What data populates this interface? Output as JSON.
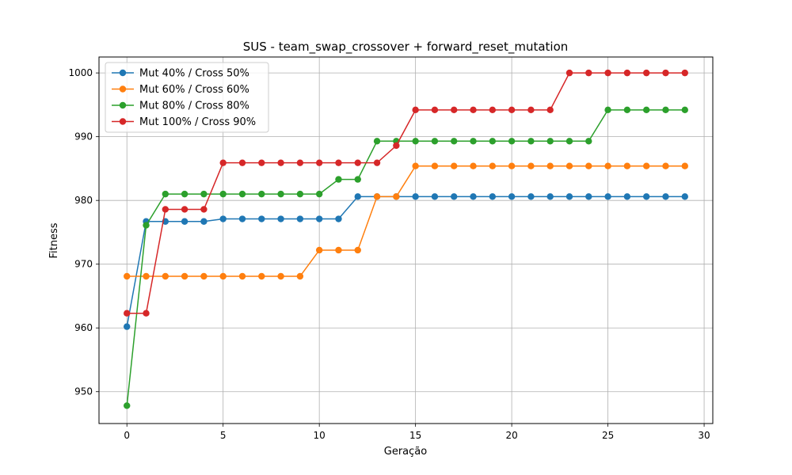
{
  "chart_data": {
    "type": "line",
    "title": "SUS - team_swap_crossover + forward_reset_mutation",
    "xlabel": "Geração",
    "ylabel": "Fitness",
    "xlim": [
      -1.45,
      30.45
    ],
    "ylim": [
      945,
      1002.5
    ],
    "xticks": [
      0,
      5,
      10,
      15,
      20,
      25,
      30
    ],
    "yticks": [
      950,
      960,
      970,
      980,
      990,
      1000
    ],
    "grid": true,
    "legend_position": "top-left",
    "x": [
      0,
      1,
      2,
      3,
      4,
      5,
      6,
      7,
      8,
      9,
      10,
      11,
      12,
      13,
      14,
      15,
      16,
      17,
      18,
      19,
      20,
      21,
      22,
      23,
      24,
      25,
      26,
      27,
      28,
      29
    ],
    "series": [
      {
        "name": "Mut 40% / Cross 50%",
        "color": "#1f77b4",
        "values": [
          960.2,
          976.7,
          976.7,
          976.7,
          976.7,
          977.1,
          977.1,
          977.1,
          977.1,
          977.1,
          977.1,
          977.1,
          980.6,
          980.6,
          980.6,
          980.6,
          980.6,
          980.6,
          980.6,
          980.6,
          980.6,
          980.6,
          980.6,
          980.6,
          980.6,
          980.6,
          980.6,
          980.6,
          980.6,
          980.6
        ]
      },
      {
        "name": "Mut 60% / Cross 60%",
        "color": "#ff7f0e",
        "values": [
          968.1,
          968.1,
          968.1,
          968.1,
          968.1,
          968.1,
          968.1,
          968.1,
          968.1,
          968.1,
          972.2,
          972.2,
          972.2,
          980.6,
          980.6,
          985.4,
          985.4,
          985.4,
          985.4,
          985.4,
          985.4,
          985.4,
          985.4,
          985.4,
          985.4,
          985.4,
          985.4,
          985.4,
          985.4,
          985.4
        ]
      },
      {
        "name": "Mut 80% / Cross 80%",
        "color": "#2ca02c",
        "values": [
          947.8,
          976.1,
          981.0,
          981.0,
          981.0,
          981.0,
          981.0,
          981.0,
          981.0,
          981.0,
          981.0,
          983.3,
          983.3,
          989.3,
          989.3,
          989.3,
          989.3,
          989.3,
          989.3,
          989.3,
          989.3,
          989.3,
          989.3,
          989.3,
          989.3,
          994.2,
          994.2,
          994.2,
          994.2,
          994.2
        ]
      },
      {
        "name": "Mut 100% / Cross 90%",
        "color": "#d62728",
        "values": [
          962.3,
          962.3,
          978.6,
          978.6,
          978.6,
          985.9,
          985.9,
          985.9,
          985.9,
          985.9,
          985.9,
          985.9,
          985.9,
          985.9,
          988.6,
          994.2,
          994.2,
          994.2,
          994.2,
          994.2,
          994.2,
          994.2,
          994.2,
          1000.0,
          1000.0,
          1000.0,
          1000.0,
          1000.0,
          1000.0,
          1000.0
        ]
      }
    ]
  }
}
